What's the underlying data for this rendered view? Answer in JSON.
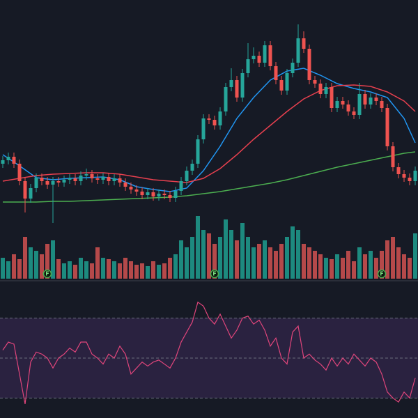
{
  "chart_data": [
    {
      "type": "candlestick",
      "up_color": "#26a69a",
      "down_color": "#ef5350",
      "ylim": [
        0,
        330
      ],
      "open": [
        95,
        100,
        105,
        95,
        70,
        45,
        60,
        75,
        70,
        65,
        70,
        68,
        72,
        74,
        70,
        78,
        80,
        74,
        72,
        76,
        70,
        74,
        68,
        62,
        58,
        55,
        50,
        54,
        48,
        52,
        50,
        46,
        56,
        70,
        85,
        95,
        130,
        160,
        158,
        150,
        170,
        205,
        215,
        190,
        225,
        245,
        250,
        240,
        265,
        235,
        215,
        200,
        225,
        240,
        275,
        260,
        215,
        210,
        195,
        205,
        175,
        185,
        180,
        170,
        165,
        195,
        180,
        190,
        185,
        175,
        120,
        90,
        80,
        75,
        70
      ],
      "high": [
        106,
        111,
        111,
        101,
        76,
        66,
        81,
        81,
        76,
        76,
        76,
        78,
        80,
        80,
        84,
        88,
        86,
        80,
        82,
        82,
        80,
        80,
        74,
        68,
        64,
        61,
        60,
        60,
        58,
        58,
        56,
        62,
        76,
        91,
        101,
        136,
        166,
        166,
        164,
        176,
        211,
        232,
        221,
        231,
        268,
        262,
        256,
        271,
        271,
        241,
        221,
        231,
        246,
        295,
        285,
        266,
        221,
        216,
        211,
        211,
        191,
        191,
        186,
        176,
        211,
        201,
        196,
        196,
        191,
        181,
        126,
        96,
        86,
        81,
        91
      ],
      "low": [
        89,
        94,
        89,
        64,
        25,
        39,
        54,
        64,
        59,
        10,
        62,
        62,
        66,
        64,
        64,
        72,
        68,
        66,
        66,
        64,
        64,
        62,
        56,
        52,
        49,
        44,
        44,
        42,
        42,
        44,
        40,
        40,
        50,
        64,
        79,
        89,
        124,
        152,
        144,
        144,
        164,
        199,
        184,
        184,
        219,
        239,
        234,
        234,
        229,
        209,
        194,
        194,
        219,
        234,
        254,
        209,
        204,
        189,
        189,
        169,
        169,
        174,
        164,
        159,
        159,
        174,
        174,
        179,
        169,
        114,
        84,
        74,
        69,
        64,
        64
      ],
      "close": [
        100,
        105,
        95,
        70,
        45,
        60,
        75,
        70,
        65,
        70,
        68,
        72,
        74,
        70,
        78,
        80,
        74,
        72,
        76,
        70,
        74,
        68,
        62,
        58,
        55,
        50,
        54,
        48,
        52,
        50,
        46,
        56,
        70,
        85,
        95,
        130,
        160,
        158,
        150,
        170,
        205,
        215,
        190,
        225,
        245,
        250,
        240,
        265,
        235,
        215,
        200,
        225,
        240,
        275,
        260,
        215,
        210,
        195,
        205,
        175,
        185,
        180,
        170,
        165,
        195,
        180,
        190,
        185,
        175,
        120,
        90,
        80,
        75,
        70,
        85
      ],
      "overlay_x": [
        0,
        3,
        6,
        9,
        12,
        15,
        18,
        21,
        24,
        27,
        30,
        33,
        36,
        39,
        42,
        45,
        48,
        51,
        54,
        57,
        60,
        63,
        66,
        69,
        72,
        74
      ],
      "overlays": [
        {
          "color": "#2196f3",
          "values": [
            108,
            92,
            75,
            72,
            74,
            75,
            76,
            72,
            62,
            58,
            55,
            60,
            85,
            120,
            160,
            190,
            215,
            228,
            232,
            222,
            210,
            203,
            198,
            190,
            160,
            125
          ]
        },
        {
          "color": "#e8404f",
          "values": [
            70,
            74,
            78,
            80,
            81,
            82,
            82,
            80,
            76,
            72,
            70,
            68,
            74,
            88,
            108,
            130,
            150,
            170,
            188,
            200,
            207,
            208,
            206,
            198,
            185,
            170
          ]
        },
        {
          "color": "#4caf50",
          "values": [
            40,
            40,
            40,
            41,
            41,
            42,
            43,
            44,
            45,
            46,
            47,
            49,
            52,
            55,
            59,
            63,
            67,
            72,
            78,
            84,
            90,
            95,
            100,
            105,
            110,
            112
          ]
        }
      ]
    },
    {
      "type": "bar",
      "up_color": "#1d8a7f",
      "down_color": "#b5494a",
      "ylim": [
        0,
        100
      ],
      "values": [
        30,
        25,
        35,
        28,
        60,
        45,
        40,
        35,
        50,
        55,
        28,
        22,
        25,
        20,
        30,
        25,
        22,
        45,
        30,
        28,
        25,
        22,
        30,
        25,
        20,
        22,
        18,
        25,
        20,
        22,
        30,
        35,
        55,
        45,
        60,
        90,
        70,
        65,
        50,
        60,
        85,
        70,
        55,
        80,
        60,
        45,
        50,
        55,
        45,
        40,
        50,
        60,
        75,
        70,
        50,
        45,
        40,
        35,
        30,
        28,
        35,
        30,
        40,
        25,
        45,
        35,
        40,
        30,
        40,
        55,
        60,
        45,
        35,
        30,
        65
      ],
      "annotations": [
        {
          "text": "F",
          "x": 8
        },
        {
          "text": "F",
          "x": 38
        },
        {
          "text": "F",
          "x": 68
        }
      ]
    },
    {
      "type": "line",
      "color": "#e0457b",
      "ylim": [
        20,
        88
      ],
      "levels": [
        30,
        50,
        70
      ],
      "band": [
        30,
        70
      ],
      "band_color": "#2a2240",
      "values": [
        54,
        58,
        57,
        42,
        27,
        48,
        53,
        52,
        50,
        45,
        50,
        52,
        55,
        53,
        58,
        58,
        52,
        50,
        47,
        52,
        50,
        56,
        52,
        42,
        45,
        48,
        46,
        48,
        49,
        47,
        45,
        50,
        58,
        63,
        68,
        78,
        76,
        70,
        67,
        72,
        66,
        60,
        64,
        70,
        71,
        67,
        69,
        64,
        56,
        60,
        50,
        47,
        63,
        66,
        50,
        52,
        49,
        47,
        44,
        50,
        46,
        50,
        47,
        52,
        49,
        46,
        50,
        48,
        42,
        33,
        30,
        28,
        33,
        30,
        40
      ]
    }
  ]
}
